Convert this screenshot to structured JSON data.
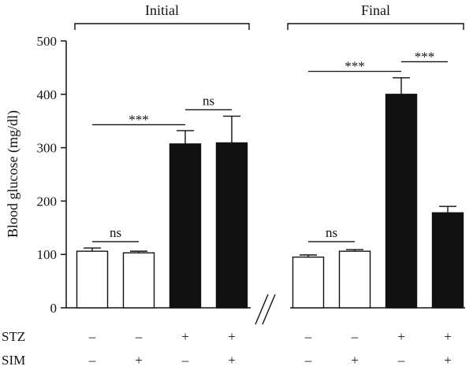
{
  "chart_data": {
    "type": "bar",
    "ylabel": "Blood glucose (mg/dl)",
    "ylim": [
      0,
      500
    ],
    "yticks": [
      0,
      100,
      200,
      300,
      400,
      500
    ],
    "groups": [
      {
        "label": "Initial",
        "bars": [
          {
            "value": 106,
            "error": 6,
            "fill": "open",
            "STZ": "–",
            "SIM": "–"
          },
          {
            "value": 103,
            "error": 3,
            "fill": "open",
            "STZ": "–",
            "SIM": "+"
          },
          {
            "value": 307,
            "error": 25,
            "fill": "solid",
            "STZ": "+",
            "SIM": "–"
          },
          {
            "value": 309,
            "error": 50,
            "fill": "solid",
            "STZ": "+",
            "SIM": "+"
          }
        ],
        "comparisons": [
          {
            "from": 0,
            "to": 1,
            "label": "ns",
            "y": 124
          },
          {
            "from": 0,
            "to": 2,
            "label": "***",
            "y": 343
          },
          {
            "from": 2,
            "to": 3,
            "label": "ns",
            "y": 371
          }
        ]
      },
      {
        "label": "Final",
        "bars": [
          {
            "value": 95,
            "error": 4,
            "fill": "open",
            "STZ": "–",
            "SIM": "–"
          },
          {
            "value": 106,
            "error": 3,
            "fill": "open",
            "STZ": "–",
            "SIM": "+"
          },
          {
            "value": 400,
            "error": 31,
            "fill": "solid",
            "STZ": "+",
            "SIM": "–"
          },
          {
            "value": 178,
            "error": 12,
            "fill": "solid",
            "STZ": "+",
            "SIM": "+"
          }
        ],
        "comparisons": [
          {
            "from": 0,
            "to": 1,
            "label": "ns",
            "y": 124
          },
          {
            "from": 0,
            "to": 2,
            "label": "***",
            "y": 443
          },
          {
            "from": 2,
            "to": 3,
            "label": "***",
            "y": 461
          }
        ]
      }
    ],
    "factors": [
      "STZ",
      "SIM"
    ],
    "grid": false,
    "axis_break": true
  },
  "colors": {
    "solid_bar": "#111111",
    "open_bar": "#ffffff",
    "stroke": "#111111"
  }
}
